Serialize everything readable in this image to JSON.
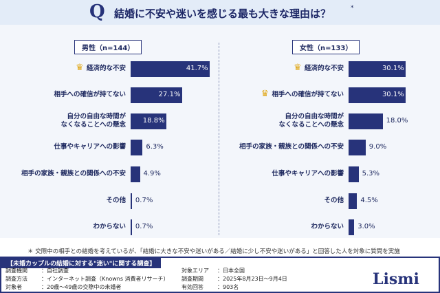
{
  "header": {
    "icon": "Q",
    "title": "結婚に不安や迷いを感じる最も大きな理由は？",
    "mark": "*"
  },
  "chart_data": [
    {
      "type": "bar",
      "title": "男性（n=144）",
      "categories": [
        "経済的な不安",
        "相手への確信が持てない",
        "自分の自由な時間が\nなくなることへの懸念",
        "仕事やキャリアへの影響",
        "相手の家族・親族との関係への不安",
        "その他",
        "わからない"
      ],
      "values": [
        41.7,
        27.1,
        18.8,
        6.3,
        4.9,
        0.7,
        0.7
      ],
      "value_labels": [
        "41.7%",
        "27.1%",
        "18.8%",
        "6.3%",
        "4.9%",
        "0.7%",
        "0.7%"
      ],
      "color": "#27337a",
      "xlim": [
        0,
        45
      ]
    },
    {
      "type": "bar",
      "title": "女性（n=133）",
      "categories": [
        "経済的な不安",
        "相手への確信が持てない",
        "自分の自由な時間が\nなくなることへの懸念",
        "相手の家族・親族との関係への不安",
        "仕事やキャリアへの影響",
        "その他",
        "わからない"
      ],
      "values": [
        30.1,
        30.1,
        18.0,
        9.0,
        5.3,
        4.5,
        3.0
      ],
      "value_labels": [
        "30.1%",
        "30.1%",
        "18.0%",
        "9.0%",
        "5.3%",
        "4.5%",
        "3.0%"
      ],
      "color": "#27337a",
      "xlim": [
        0,
        45
      ]
    }
  ],
  "note": "＊ 交際中の相手との結婚を考えているが、「結婚に大きな不安や迷いがある／結婚に少し不安や迷いがある」と回答した人を対象に質問を実施",
  "survey": {
    "heading": "【未婚カップルの結婚に対する\"迷い\"に関する調査】",
    "rows": [
      [
        "調査機関",
        "：自社調査"
      ],
      [
        "調査方法",
        "：インターネット調査（Knowns 消費者リサーチ）"
      ],
      [
        "対象者",
        "：20歳～49歳の交際中の未婚者"
      ],
      [
        "対象エリア",
        "：日本全国"
      ],
      [
        "調査期間",
        "：2025年8月23日～9月4日"
      ],
      [
        "有効回答",
        "：903名"
      ]
    ],
    "logo": "Lismi"
  }
}
